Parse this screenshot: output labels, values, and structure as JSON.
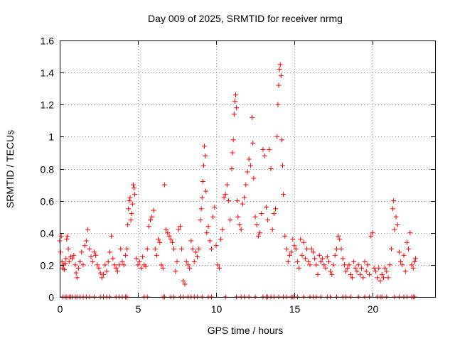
{
  "chart_data": {
    "type": "scatter",
    "title": "Day 009 of 2025, SRMTID for receiver nrmg",
    "xlabel": "GPS time / hours",
    "ylabel": "SRMTID / TECUs",
    "xlim": [
      0,
      24
    ],
    "ylim": [
      0,
      1.6
    ],
    "xticks": [
      0,
      5,
      10,
      15,
      20
    ],
    "xtick_labels": [
      "0",
      "5",
      "10",
      "15",
      "20"
    ],
    "yticks": [
      0,
      0.2,
      0.4,
      0.6,
      0.8,
      1,
      1.2,
      1.4,
      1.6
    ],
    "ytick_labels": [
      "0",
      "0.2",
      "0.4",
      "0.6",
      "0.8",
      "1",
      "1.2",
      "1.4",
      "1.6"
    ],
    "grid": true,
    "marker": "plus",
    "marker_color": "#ff0000",
    "series": [
      {
        "name": "SRMTID",
        "points": [
          [
            0.0,
            0.35
          ],
          [
            0.05,
            0.28
          ],
          [
            0.1,
            0.38
          ],
          [
            0.15,
            0.22
          ],
          [
            0.2,
            0.18
          ],
          [
            0.25,
            0.2
          ],
          [
            0.3,
            0.17
          ],
          [
            0.35,
            0.21
          ],
          [
            0.4,
            0.24
          ],
          [
            0.45,
            0.36
          ],
          [
            0.5,
            0.38
          ],
          [
            0.55,
            0.3
          ],
          [
            0.6,
            0.22
          ],
          [
            0.7,
            0.25
          ],
          [
            0.8,
            0.24
          ],
          [
            0.9,
            0.26
          ],
          [
            1.0,
            0.2
          ],
          [
            1.05,
            0.15
          ],
          [
            1.1,
            0.12
          ],
          [
            1.2,
            0.18
          ],
          [
            1.3,
            0.22
          ],
          [
            1.4,
            0.28
          ],
          [
            1.5,
            0.2
          ],
          [
            1.6,
            0.32
          ],
          [
            1.7,
            0.35
          ],
          [
            1.8,
            0.42
          ],
          [
            1.9,
            0.3
          ],
          [
            2.0,
            0.25
          ],
          [
            2.1,
            0.22
          ],
          [
            2.2,
            0.28
          ],
          [
            2.3,
            0.26
          ],
          [
            2.4,
            0.2
          ],
          [
            2.5,
            0.18
          ],
          [
            2.6,
            0.15
          ],
          [
            2.7,
            0.12
          ],
          [
            2.8,
            0.14
          ],
          [
            2.9,
            0.2
          ],
          [
            3.0,
            0.16
          ],
          [
            3.1,
            0.22
          ],
          [
            3.2,
            0.28
          ],
          [
            3.3,
            0.38
          ],
          [
            3.4,
            0.24
          ],
          [
            3.5,
            0.2
          ],
          [
            3.6,
            0.18
          ],
          [
            3.7,
            0.16
          ],
          [
            3.8,
            0.2
          ],
          [
            3.9,
            0.3
          ],
          [
            4.0,
            0.22
          ],
          [
            4.1,
            0.2
          ],
          [
            4.2,
            0.26
          ],
          [
            4.3,
            0.3
          ],
          [
            4.35,
            0.45
          ],
          [
            4.4,
            0.55
          ],
          [
            4.45,
            0.6
          ],
          [
            4.5,
            0.62
          ],
          [
            4.55,
            0.48
          ],
          [
            4.6,
            0.52
          ],
          [
            4.65,
            0.58
          ],
          [
            4.7,
            0.7
          ],
          [
            4.75,
            0.68
          ],
          [
            4.8,
            0.64
          ],
          [
            4.9,
            0.24
          ],
          [
            5.0,
            0.2
          ],
          [
            5.1,
            0.22
          ],
          [
            5.2,
            0.18
          ],
          [
            5.3,
            0.25
          ],
          [
            5.4,
            0.2
          ],
          [
            5.5,
            0.19
          ],
          [
            5.6,
            0.3
          ],
          [
            5.7,
            0.44
          ],
          [
            5.8,
            0.48
          ],
          [
            5.9,
            0.5
          ],
          [
            6.0,
            0.54
          ],
          [
            6.1,
            0.3
          ],
          [
            6.2,
            0.26
          ],
          [
            6.3,
            0.36
          ],
          [
            6.4,
            0.34
          ],
          [
            6.5,
            0.2
          ],
          [
            6.6,
            0.18
          ],
          [
            6.7,
            0.7
          ],
          [
            6.8,
            0.42
          ],
          [
            6.9,
            0.4
          ],
          [
            7.0,
            0.38
          ],
          [
            7.1,
            0.36
          ],
          [
            7.2,
            0.34
          ],
          [
            7.3,
            0.3
          ],
          [
            7.4,
            0.16
          ],
          [
            7.5,
            0.22
          ],
          [
            7.6,
            0.42
          ],
          [
            7.7,
            0.44
          ],
          [
            7.8,
            0.3
          ],
          [
            7.9,
            0.1
          ],
          [
            8.0,
            0.08
          ],
          [
            8.1,
            0.22
          ],
          [
            8.2,
            0.2
          ],
          [
            8.3,
            0.18
          ],
          [
            8.4,
            0.35
          ],
          [
            8.5,
            0.3
          ],
          [
            8.6,
            0.22
          ],
          [
            8.7,
            0.28
          ],
          [
            8.8,
            0.25
          ],
          [
            8.9,
            0.3
          ],
          [
            9.0,
            0.48
          ],
          [
            9.05,
            0.55
          ],
          [
            9.1,
            0.62
          ],
          [
            9.15,
            0.72
          ],
          [
            9.2,
            0.82
          ],
          [
            9.25,
            0.94
          ],
          [
            9.3,
            0.88
          ],
          [
            9.35,
            0.66
          ],
          [
            9.4,
            0.4
          ],
          [
            9.5,
            0.44
          ],
          [
            9.6,
            0.35
          ],
          [
            9.7,
            0.3
          ],
          [
            9.8,
            0.5
          ],
          [
            9.9,
            0.56
          ],
          [
            10.0,
            0.32
          ],
          [
            10.1,
            0.2
          ],
          [
            10.2,
            0.18
          ],
          [
            10.3,
            0.36
          ],
          [
            10.4,
            0.42
          ],
          [
            10.5,
            0.62
          ],
          [
            10.6,
            0.64
          ],
          [
            10.7,
            0.7
          ],
          [
            10.8,
            0.6
          ],
          [
            10.9,
            0.48
          ],
          [
            11.0,
            0.8
          ],
          [
            11.05,
            0.9
          ],
          [
            11.1,
            0.98
          ],
          [
            11.15,
            1.14
          ],
          [
            11.2,
            1.22
          ],
          [
            11.25,
            1.26
          ],
          [
            11.3,
            1.18
          ],
          [
            11.35,
            0.6
          ],
          [
            11.4,
            0.5
          ],
          [
            11.5,
            0.45
          ],
          [
            11.6,
            0.42
          ],
          [
            11.7,
            0.58
          ],
          [
            11.8,
            0.62
          ],
          [
            11.9,
            0.7
          ],
          [
            12.0,
            0.78
          ],
          [
            12.1,
            0.86
          ],
          [
            12.2,
            0.82
          ],
          [
            12.3,
            1.12
          ],
          [
            12.35,
            0.96
          ],
          [
            12.4,
            0.74
          ],
          [
            12.5,
            0.5
          ],
          [
            12.6,
            0.45
          ],
          [
            12.7,
            0.38
          ],
          [
            12.8,
            0.4
          ],
          [
            12.9,
            0.52
          ],
          [
            13.0,
            0.92
          ],
          [
            13.1,
            0.88
          ],
          [
            13.2,
            0.56
          ],
          [
            13.3,
            0.48
          ],
          [
            13.4,
            0.92
          ],
          [
            13.5,
            0.8
          ],
          [
            13.6,
            0.42
          ],
          [
            13.7,
            0.52
          ],
          [
            13.8,
            0.55
          ],
          [
            13.9,
            1.0
          ],
          [
            13.95,
            1.2
          ],
          [
            14.0,
            1.32
          ],
          [
            14.05,
            1.42
          ],
          [
            14.1,
            1.45
          ],
          [
            14.15,
            1.38
          ],
          [
            14.2,
            0.98
          ],
          [
            14.25,
            0.82
          ],
          [
            14.3,
            0.64
          ],
          [
            14.4,
            0.38
          ],
          [
            14.5,
            0.3
          ],
          [
            14.6,
            0.22
          ],
          [
            14.7,
            0.26
          ],
          [
            14.8,
            0.28
          ],
          [
            14.9,
            0.36
          ],
          [
            15.0,
            0.32
          ],
          [
            15.1,
            0.3
          ],
          [
            15.2,
            0.22
          ],
          [
            15.3,
            0.18
          ],
          [
            15.4,
            0.36
          ],
          [
            15.5,
            0.26
          ],
          [
            15.6,
            0.34
          ],
          [
            15.7,
            0.24
          ],
          [
            15.8,
            0.3
          ],
          [
            15.9,
            0.22
          ],
          [
            16.0,
            0.2
          ],
          [
            16.1,
            0.3
          ],
          [
            16.2,
            0.28
          ],
          [
            16.3,
            0.24
          ],
          [
            16.4,
            0.2
          ],
          [
            16.5,
            0.14
          ],
          [
            16.6,
            0.26
          ],
          [
            16.7,
            0.22
          ],
          [
            16.8,
            0.24
          ],
          [
            16.9,
            0.2
          ],
          [
            17.0,
            0.18
          ],
          [
            17.1,
            0.25
          ],
          [
            17.2,
            0.22
          ],
          [
            17.3,
            0.16
          ],
          [
            17.4,
            0.14
          ],
          [
            17.5,
            0.2
          ],
          [
            17.6,
            0.26
          ],
          [
            17.7,
            0.3
          ],
          [
            17.8,
            0.38
          ],
          [
            17.9,
            0.36
          ],
          [
            18.0,
            0.3
          ],
          [
            18.1,
            0.24
          ],
          [
            18.2,
            0.2
          ],
          [
            18.3,
            0.16
          ],
          [
            18.4,
            0.18
          ],
          [
            18.5,
            0.2
          ],
          [
            18.6,
            0.14
          ],
          [
            18.7,
            0.12
          ],
          [
            18.8,
            0.22
          ],
          [
            18.9,
            0.18
          ],
          [
            19.0,
            0.16
          ],
          [
            19.1,
            0.2
          ],
          [
            19.2,
            0.14
          ],
          [
            19.3,
            0.18
          ],
          [
            19.4,
            0.12
          ],
          [
            19.5,
            0.22
          ],
          [
            19.6,
            0.16
          ],
          [
            19.7,
            0.2
          ],
          [
            19.8,
            0.14
          ],
          [
            19.9,
            0.38
          ],
          [
            20.0,
            0.4
          ],
          [
            20.1,
            0.18
          ],
          [
            20.2,
            0.16
          ],
          [
            20.3,
            0.12
          ],
          [
            20.4,
            0.18
          ],
          [
            20.5,
            0.1
          ],
          [
            20.6,
            0.14
          ],
          [
            20.7,
            0.12
          ],
          [
            20.8,
            0.18
          ],
          [
            20.9,
            0.16
          ],
          [
            21.0,
            0.12
          ],
          [
            21.1,
            0.2
          ],
          [
            21.2,
            0.3
          ],
          [
            21.3,
            0.55
          ],
          [
            21.35,
            0.6
          ],
          [
            21.4,
            0.42
          ],
          [
            21.5,
            0.5
          ],
          [
            21.6,
            0.45
          ],
          [
            21.7,
            0.28
          ],
          [
            21.8,
            0.22
          ],
          [
            21.9,
            0.2
          ],
          [
            22.0,
            0.26
          ],
          [
            22.1,
            0.16
          ],
          [
            22.2,
            0.34
          ],
          [
            22.3,
            0.3
          ],
          [
            22.4,
            0.4
          ],
          [
            22.5,
            0.2
          ],
          [
            22.6,
            0.18
          ],
          [
            22.7,
            0.22
          ],
          [
            22.75,
            0.24
          ]
        ],
        "zero_points": [
          0.2,
          0.35,
          0.45,
          0.6,
          0.7,
          0.8,
          1.0,
          1.1,
          1.3,
          1.5,
          1.7,
          1.9,
          2.2,
          2.6,
          2.8,
          3.0,
          3.2,
          3.6,
          3.8,
          4.0,
          4.2,
          4.3,
          5.4,
          5.6,
          6.6,
          6.7,
          7.1,
          7.3,
          7.7,
          7.9,
          8.2,
          8.4,
          8.6,
          8.8,
          9.1,
          9.5,
          9.7,
          10.6,
          11.3,
          11.6,
          11.8,
          12.1,
          12.5,
          13.0,
          13.2,
          13.3,
          13.5,
          13.7,
          14.0,
          14.3,
          14.5,
          14.8,
          14.9,
          15.0,
          15.2,
          15.6,
          16.0,
          16.2,
          16.4,
          16.7,
          17.1,
          17.3,
          17.7,
          18.1,
          18.3,
          18.6,
          19.1,
          19.5,
          19.8,
          20.3,
          20.5,
          20.6,
          20.9,
          21.4,
          21.7,
          22.0,
          22.2,
          22.5,
          22.6,
          22.7
        ]
      }
    ]
  }
}
